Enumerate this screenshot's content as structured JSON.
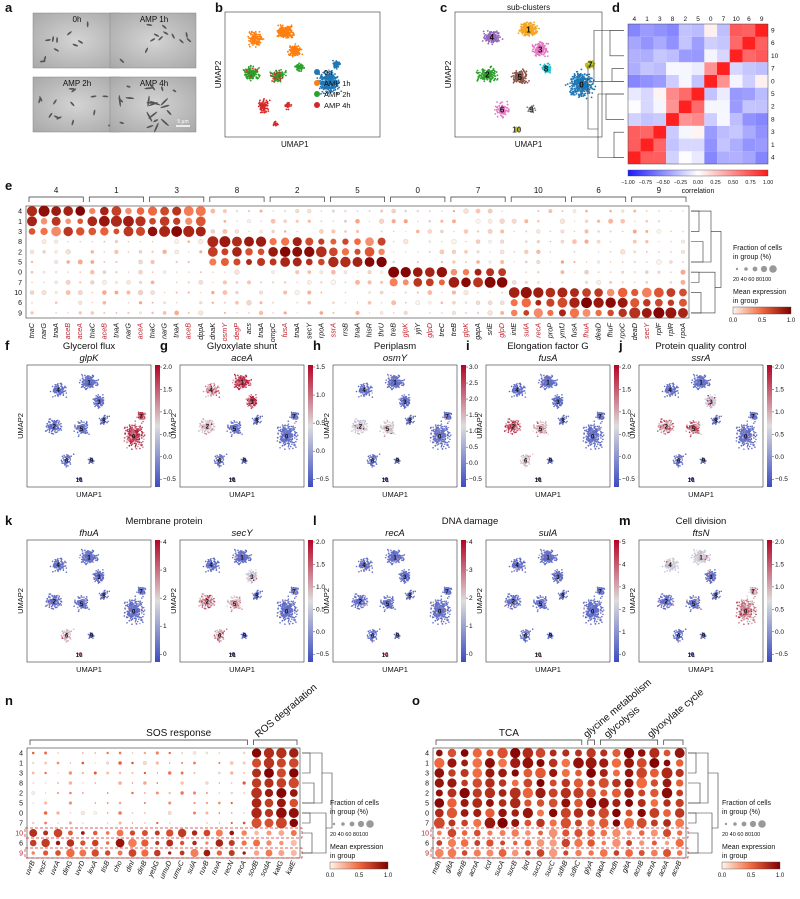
{
  "panel_letters": [
    "a",
    "b",
    "c",
    "d",
    "e",
    "f",
    "g",
    "h",
    "i",
    "j",
    "k",
    "l",
    "m",
    "n",
    "o"
  ],
  "micro_labels": [
    "0h",
    "AMP 1h",
    "AMP 2h",
    "AMP 4h"
  ],
  "scale_bar": "5 µm",
  "umap": {
    "xlabel": "UMAP1",
    "ylabel": "UMAP2",
    "subclusters_title": "sub-clusters",
    "legend": [
      {
        "label": "0h",
        "color": "#1f77b4"
      },
      {
        "label": "AMP 1h",
        "color": "#ff7f0e"
      },
      {
        "label": "AMP 2h",
        "color": "#2ca02c"
      },
      {
        "label": "AMP 4h",
        "color": "#d62728"
      }
    ],
    "cluster_labels": [
      "1",
      "2",
      "3",
      "4",
      "5",
      "6",
      "7",
      "8",
      "9",
      "10",
      "0"
    ]
  },
  "correlation": {
    "order": [
      "4",
      "1",
      "3",
      "8",
      "2",
      "5",
      "0",
      "7",
      "10",
      "6",
      "9"
    ],
    "right_order": [
      "9",
      "6",
      "10",
      "7",
      "0",
      "5",
      "2",
      "8",
      "3",
      "1",
      "4"
    ],
    "colorbar_ticks": [
      "−1.00",
      "−0.75",
      "−0.50",
      "−0.25",
      "0.00",
      "0.25",
      "0.50",
      "0.75",
      "1.00"
    ],
    "colorbar_label": "correlation"
  },
  "dotplot_e": {
    "groups": [
      "4",
      "1",
      "3",
      "8",
      "2",
      "5",
      "0",
      "7",
      "10",
      "6",
      "9"
    ],
    "rows": [
      "4",
      "1",
      "3",
      "8",
      "2",
      "5",
      "0",
      "7",
      "10",
      "6",
      "9"
    ],
    "genes": [
      {
        "g": "tnaC",
        "r": 0
      },
      {
        "g": "narG",
        "r": 0
      },
      {
        "g": "tnaA",
        "r": 0
      },
      {
        "g": "aceB",
        "r": 1
      },
      {
        "g": "aceA",
        "r": 1
      },
      {
        "g": "tnaC",
        "r": 0
      },
      {
        "g": "aceB",
        "r": 1
      },
      {
        "g": "tnaA",
        "r": 0
      },
      {
        "g": "narG",
        "r": 0
      },
      {
        "g": "aceA",
        "r": 1
      },
      {
        "g": "tnaC",
        "r": 0
      },
      {
        "g": "narG",
        "r": 0
      },
      {
        "g": "tnaA",
        "r": 0
      },
      {
        "g": "aceB",
        "r": 1
      },
      {
        "g": "dppA",
        "r": 0
      },
      {
        "g": "dnaK",
        "r": 0
      },
      {
        "g": "osmY",
        "r": 1
      },
      {
        "g": "degP",
        "r": 1
      },
      {
        "g": "acs",
        "r": 0
      },
      {
        "g": "tnaA",
        "r": 0
      },
      {
        "g": "ompC",
        "r": 0
      },
      {
        "g": "fusA",
        "r": 1
      },
      {
        "g": "tnaA",
        "r": 0
      },
      {
        "g": "secY",
        "r": 0
      },
      {
        "g": "rpoA",
        "r": 0
      },
      {
        "g": "ssrA",
        "r": 1
      },
      {
        "g": "rrsB",
        "r": 0
      },
      {
        "g": "tnaA",
        "r": 0
      },
      {
        "g": "hisR",
        "r": 0
      },
      {
        "g": "thrU",
        "r": 0
      },
      {
        "g": "treB",
        "r": 0
      },
      {
        "g": "glpK",
        "r": 1
      },
      {
        "g": "yjiY",
        "r": 0
      },
      {
        "g": "glpD",
        "r": 1
      },
      {
        "g": "treC",
        "r": 0
      },
      {
        "g": "treB",
        "r": 0
      },
      {
        "g": "glpK",
        "r": 1
      },
      {
        "g": "gapA",
        "r": 0
      },
      {
        "g": "srlE",
        "r": 0
      },
      {
        "g": "glpD",
        "r": 1
      },
      {
        "g": "intE",
        "r": 0
      },
      {
        "g": "sulA",
        "r": 1
      },
      {
        "g": "recA",
        "r": 1
      },
      {
        "g": "proP",
        "r": 0
      },
      {
        "g": "ymfJ",
        "r": 0
      },
      {
        "g": "fusA",
        "r": 0
      },
      {
        "g": "fhuA",
        "r": 1
      },
      {
        "g": "deaD",
        "r": 0
      },
      {
        "g": "fhuF",
        "r": 0
      },
      {
        "g": "rpoC",
        "r": 0
      },
      {
        "g": "deaD",
        "r": 0
      },
      {
        "g": "secY",
        "r": 1
      },
      {
        "g": "rplF",
        "r": 0
      },
      {
        "g": "rplR",
        "r": 0
      },
      {
        "g": "rpoA",
        "r": 0
      }
    ],
    "legend_size_title": "Fraction of cells in group (%)",
    "size_ticks": "20 40 60 80100",
    "legend_color_title": "Mean expression in group",
    "color_ticks": [
      "0.0",
      "0.5",
      "1.0"
    ]
  },
  "feature_panels": [
    {
      "letter": "f",
      "title": "Glycerol flux",
      "gene": "glpK",
      "ticks": [
        "2.0",
        "1.5",
        "1.0",
        "0.5",
        "0.0",
        "−0.5"
      ]
    },
    {
      "letter": "g",
      "title": "Glyoxylate shunt",
      "gene": "aceA",
      "ticks": [
        "1.5",
        "1.0",
        "0.5",
        "0.0",
        "−0.5"
      ]
    },
    {
      "letter": "h",
      "title": "Periplasm",
      "gene": "osmY",
      "ticks": [
        "3.0",
        "2.5",
        "2.0",
        "1.5",
        "1.0",
        "0.5",
        "0.0",
        "−0.5"
      ]
    },
    {
      "letter": "i",
      "title": "Elongation factor G",
      "gene": "fusA",
      "ticks": [
        "2.0",
        "1.5",
        "1.0",
        "0.5",
        "0.0",
        "−0.5"
      ]
    },
    {
      "letter": "j",
      "title": "Protein quality control",
      "gene": "ssrA",
      "ticks": [
        "2.0",
        "1.5",
        "1.0",
        "0.5",
        "0.0",
        "−0.5"
      ]
    },
    {
      "letter": "k",
      "title": "Membrane protein",
      "gene": "fhuA",
      "ticks": [
        "4",
        "3",
        "2",
        "1",
        "0"
      ]
    },
    {
      "letter": "",
      "title": "",
      "gene": "secY",
      "ticks": [
        "2.0",
        "1.5",
        "1.0",
        "0.5",
        "0.0",
        "−0.5"
      ]
    },
    {
      "letter": "l",
      "title": "DNA damage",
      "gene": "recA",
      "ticks": [
        "4",
        "3",
        "2",
        "1",
        "0"
      ]
    },
    {
      "letter": "",
      "title": "",
      "gene": "sulA",
      "ticks": [
        "5",
        "4",
        "3",
        "2",
        "1",
        "0"
      ]
    },
    {
      "letter": "m",
      "title": "Cell division",
      "gene": "ftsN",
      "ticks": [
        "2.0",
        "1.5",
        "1.0",
        "0.5",
        "0.0",
        "−0.5"
      ]
    }
  ],
  "dotplot_n": {
    "section_sos": "SOS response",
    "section_ros": "ROS degradation",
    "rows": [
      "4",
      "1",
      "3",
      "8",
      "2",
      "5",
      "0",
      "7",
      "10",
      "6",
      "9"
    ],
    "genes": [
      "uvrB",
      "recF",
      "uvrA",
      "dinG",
      "uvrD",
      "lexA",
      "tisB",
      "cho",
      "dinI",
      "dinB",
      "yebG",
      "umuD",
      "umuC",
      "sulA",
      "ruvB",
      "ruvA",
      "recN",
      "recA",
      "sodB",
      "sodA",
      "katG",
      "katE"
    ]
  },
  "dotplot_o": {
    "section_tca": "TCA",
    "section_gly": "glycine metabolism",
    "section_glyco": "glycolysis",
    "section_glyox": "glyoxylate cycle",
    "rows": [
      "4",
      "1",
      "3",
      "8",
      "2",
      "5",
      "0",
      "7",
      "10",
      "6",
      "9"
    ],
    "genes": [
      "mdh",
      "gltA",
      "acnB",
      "acnA",
      "icd",
      "sucA",
      "sucB",
      "lpd",
      "sucD",
      "sucC",
      "sdhB",
      "sdhC",
      "glyA",
      "gapA",
      "mdh",
      "gltA",
      "acnB",
      "acnA",
      "aceA",
      "aceB"
    ]
  }
}
